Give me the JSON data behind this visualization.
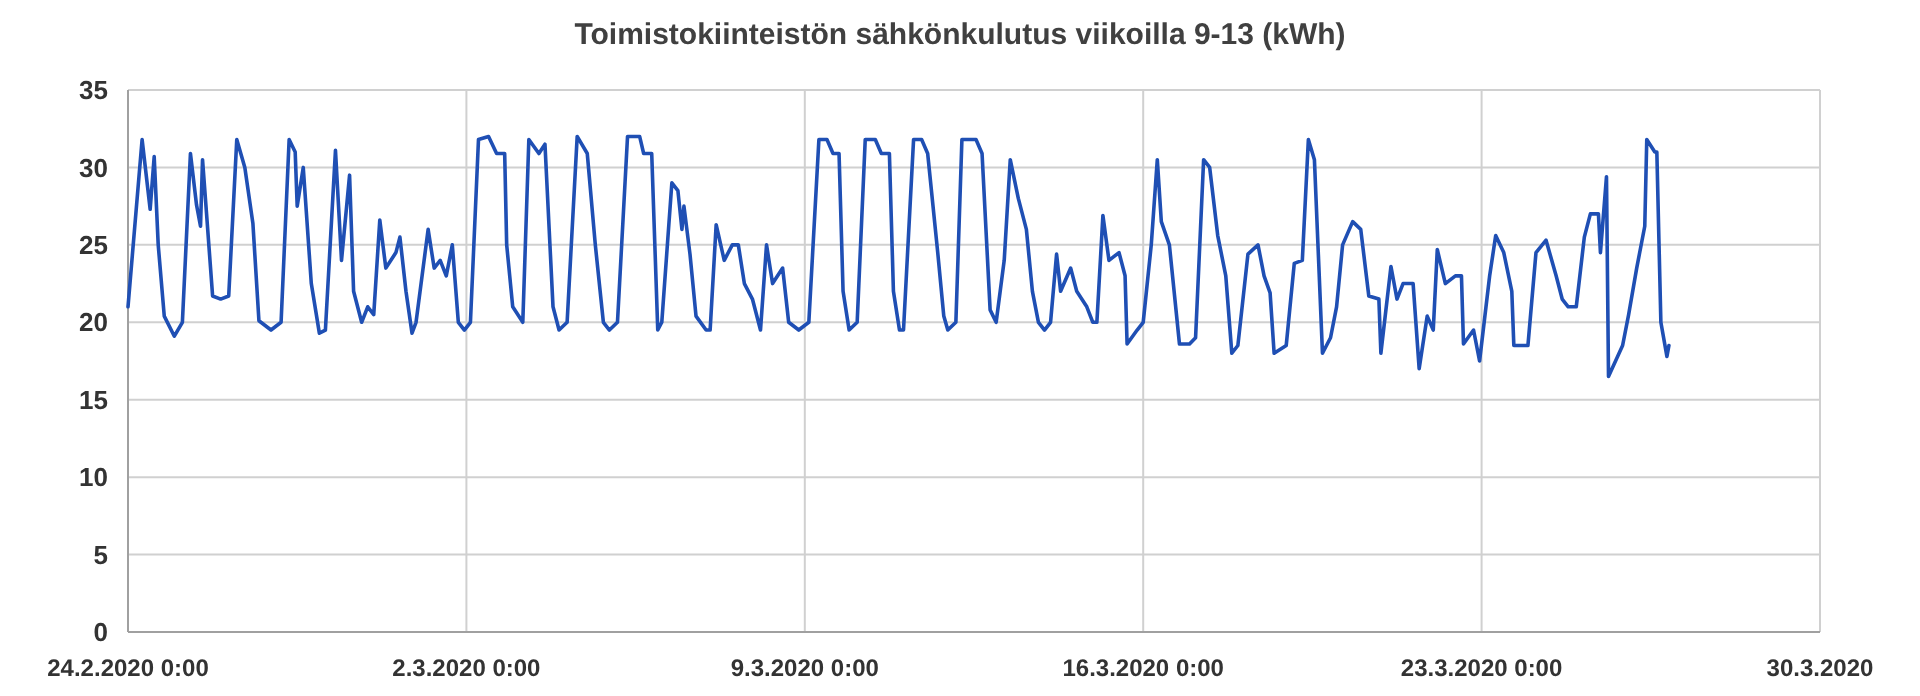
{
  "chart_data": {
    "type": "line",
    "title": "Toimistokiinteistön sähkönkulutus viikoilla 9-13 (kWh)",
    "xlim": [
      "2020-02-24",
      "2020-03-30"
    ],
    "xticks": [
      {
        "value": "2020-02-24",
        "label": "24.2.2020 0:00"
      },
      {
        "value": "2020-03-02",
        "label": "2.3.2020 0:00"
      },
      {
        "value": "2020-03-09",
        "label": "9.3.2020 0:00"
      },
      {
        "value": "2020-03-16",
        "label": "16.3.2020 0:00"
      },
      {
        "value": "2020-03-23",
        "label": "23.3.2020 0:00"
      },
      {
        "value": "2020-03-30",
        "label": "30.3.2020"
      }
    ],
    "ylim": [
      0,
      35
    ],
    "yticks": [
      0,
      5,
      10,
      15,
      20,
      25,
      30,
      35
    ],
    "grid": true,
    "series": [
      {
        "color": "#1f4fb4",
        "x": [
          "2020-02-24T00:00",
          "2020-02-24T07:00",
          "2020-02-24T11:00",
          "2020-02-24T13:00",
          "2020-02-24T15:00",
          "2020-02-24T18:00",
          "2020-02-24T23:00",
          "2020-02-25T03:00",
          "2020-02-25T07:00",
          "2020-02-25T10:00",
          "2020-02-25T12:00",
          "2020-02-25T13:00",
          "2020-02-25T15:00",
          "2020-02-25T18:00",
          "2020-02-25T22:00",
          "2020-02-26T02:00",
          "2020-02-26T06:00",
          "2020-02-26T10:00",
          "2020-02-26T14:00",
          "2020-02-26T17:00",
          "2020-02-26T23:00",
          "2020-02-27T04:00",
          "2020-02-27T08:00",
          "2020-02-27T11:00",
          "2020-02-27T12:00",
          "2020-02-27T15:00",
          "2020-02-27T19:00",
          "2020-02-27T23:00",
          "2020-02-28T02:00",
          "2020-02-28T07:00",
          "2020-02-28T10:00",
          "2020-02-28T14:00",
          "2020-02-28T16:00",
          "2020-02-28T20:00",
          "2020-02-28T23:00",
          "2020-02-29T02:00",
          "2020-02-29T05:00",
          "2020-02-29T08:00",
          "2020-02-29T13:00",
          "2020-02-29T15:00",
          "2020-02-29T18:00",
          "2020-02-29T21:00",
          "2020-02-29T23:00",
          "2020-03-01T05:00",
          "2020-03-01T08:00",
          "2020-03-01T11:00",
          "2020-03-01T14:00",
          "2020-03-01T17:00",
          "2020-03-01T20:00",
          "2020-03-01T23:00",
          "2020-03-02T02:00",
          "2020-03-02T06:00",
          "2020-03-02T11:00",
          "2020-03-02T15:00",
          "2020-03-02T19:00",
          "2020-03-02T20:00",
          "2020-03-02T23:00",
          "2020-03-03T04:00",
          "2020-03-03T07:00",
          "2020-03-03T12:00",
          "2020-03-03T15:00",
          "2020-03-03T19:00",
          "2020-03-03T22:00",
          "2020-03-04T02:00",
          "2020-03-04T07:00",
          "2020-03-04T12:00",
          "2020-03-04T16:00",
          "2020-03-04T20:00",
          "2020-03-04T23:00",
          "2020-03-05T03:00",
          "2020-03-05T08:00",
          "2020-03-05T14:00",
          "2020-03-05T16:00",
          "2020-03-05T20:00",
          "2020-03-05T23:00",
          "2020-03-06T01:00",
          "2020-03-06T06:00",
          "2020-03-06T09:00",
          "2020-03-06T11:00",
          "2020-03-06T12:00",
          "2020-03-06T15:00",
          "2020-03-06T18:00",
          "2020-03-06T23:00",
          "2020-03-07T01:00",
          "2020-03-07T04:00",
          "2020-03-07T08:00",
          "2020-03-07T12:00",
          "2020-03-07T15:00",
          "2020-03-07T18:00",
          "2020-03-07T22:00",
          "2020-03-08T02:00",
          "2020-03-08T05:00",
          "2020-03-08T08:00",
          "2020-03-08T13:00",
          "2020-03-08T16:00",
          "2020-03-08T21:00",
          "2020-03-09T02:00",
          "2020-03-09T07:00",
          "2020-03-09T11:00",
          "2020-03-09T14:00",
          "2020-03-09T17:00",
          "2020-03-09T19:00",
          "2020-03-09T22:00",
          "2020-03-10T02:00",
          "2020-03-10T06:00",
          "2020-03-10T11:00",
          "2020-03-10T14:00",
          "2020-03-10T18:00",
          "2020-03-10T20:00",
          "2020-03-10T23:00",
          "2020-03-11T01:00",
          "2020-03-11T06:00",
          "2020-03-11T10:00",
          "2020-03-11T13:00",
          "2020-03-11T18:00",
          "2020-03-11T21:00",
          "2020-03-11T23:00",
          "2020-03-12T03:00",
          "2020-03-12T06:00",
          "2020-03-12T13:00",
          "2020-03-12T16:00",
          "2020-03-12T20:00",
          "2020-03-12T23:00",
          "2020-03-13T03:00",
          "2020-03-13T06:00",
          "2020-03-13T10:00",
          "2020-03-13T14:00",
          "2020-03-13T17:00",
          "2020-03-13T20:00",
          "2020-03-13T23:00",
          "2020-03-14T02:00",
          "2020-03-14T05:00",
          "2020-03-14T07:00",
          "2020-03-14T12:00",
          "2020-03-14T15:00",
          "2020-03-14T20:00",
          "2020-03-14T23:00",
          "2020-03-15T01:00",
          "2020-03-15T04:00",
          "2020-03-15T07:00",
          "2020-03-15T12:00",
          "2020-03-15T15:00",
          "2020-03-15T16:00",
          "2020-03-15T21:00",
          "2020-03-16T00:00",
          "2020-03-16T04:00",
          "2020-03-16T07:00",
          "2020-03-16T09:00",
          "2020-03-16T13:00",
          "2020-03-16T18:00",
          "2020-03-16T23:00",
          "2020-03-17T02:00",
          "2020-03-17T06:00",
          "2020-03-17T09:00",
          "2020-03-17T13:00",
          "2020-03-17T17:00",
          "2020-03-17T20:00",
          "2020-03-17T23:00",
          "2020-03-18T04:00",
          "2020-03-18T09:00",
          "2020-03-18T12:00",
          "2020-03-18T15:00",
          "2020-03-18T17:00",
          "2020-03-18T23:00",
          "2020-03-19T03:00",
          "2020-03-19T07:00",
          "2020-03-19T10:00",
          "2020-03-19T13:00",
          "2020-03-19T17:00",
          "2020-03-19T21:00",
          "2020-03-20T00:00",
          "2020-03-20T03:00",
          "2020-03-20T08:00",
          "2020-03-20T12:00",
          "2020-03-20T16:00",
          "2020-03-20T21:00",
          "2020-03-20T22:00",
          "2020-03-21T03:00",
          "2020-03-21T06:00",
          "2020-03-21T09:00",
          "2020-03-21T14:00",
          "2020-03-21T17:00",
          "2020-03-21T21:00",
          "2020-03-22T00:00",
          "2020-03-22T02:00",
          "2020-03-22T06:00",
          "2020-03-22T11:00",
          "2020-03-22T14:00",
          "2020-03-22T15:00",
          "2020-03-22T20:00",
          "2020-03-22T23:00",
          "2020-03-23T04:00",
          "2020-03-23T07:00",
          "2020-03-23T11:00",
          "2020-03-23T15:00",
          "2020-03-23T16:00",
          "2020-03-23T23:00",
          "2020-03-24T03:00",
          "2020-03-24T08:00",
          "2020-03-24T13:00",
          "2020-03-24T16:00",
          "2020-03-24T19:00",
          "2020-03-24T23:00",
          "2020-03-25T03:00",
          "2020-03-25T06:00",
          "2020-03-25T10:00",
          "2020-03-25T11:00",
          "2020-03-25T14:00",
          "2020-03-25T15:00",
          "2020-03-25T22:00",
          "2020-03-26T01:00",
          "2020-03-26T05:00",
          "2020-03-26T09:00",
          "2020-03-26T10:00",
          "2020-03-26T14:00",
          "2020-03-26T15:00",
          "2020-03-26T17:00",
          "2020-03-26T20:00",
          "2020-03-26T21:00"
        ],
        "values": [
          21,
          31.8,
          27.3,
          30.7,
          25,
          20.4,
          19.1,
          20,
          30.9,
          27.6,
          26.2,
          30.5,
          27,
          21.7,
          21.5,
          21.7,
          31.8,
          30,
          26.4,
          20.1,
          19.5,
          20,
          31.8,
          31,
          27.5,
          30,
          22.5,
          19.3,
          19.5,
          31.1,
          24,
          29.5,
          22,
          20,
          21,
          20.5,
          26.6,
          23.5,
          24.5,
          25.5,
          22,
          19.3,
          20,
          26,
          23.5,
          24,
          23,
          25,
          20,
          19.5,
          20,
          31.8,
          32,
          30.9,
          30.9,
          25,
          21,
          20,
          31.8,
          30.9,
          31.5,
          21,
          19.5,
          20,
          32,
          30.9,
          25,
          20,
          19.5,
          20,
          32,
          32,
          30.9,
          30.9,
          19.5,
          20,
          29,
          28.5,
          26,
          27.5,
          24.4,
          20.4,
          19.5,
          19.5,
          26.3,
          24,
          25,
          25,
          22.5,
          21.5,
          19.5,
          25,
          22.5,
          23.5,
          20,
          19.5,
          20,
          31.8,
          31.8,
          30.9,
          30.9,
          22,
          19.5,
          20,
          31.8,
          31.8,
          30.9,
          30.9,
          22,
          19.5,
          19.5,
          31.8,
          31.8,
          30.9,
          24.5,
          20.4,
          19.5,
          20,
          31.8,
          31.8,
          30.9,
          20.8,
          20,
          24,
          30.5,
          28,
          26,
          22,
          20,
          19.5,
          20,
          24.4,
          22,
          23.5,
          22,
          21,
          20,
          20,
          26.9,
          24,
          24.5,
          23,
          18.6,
          19.5,
          20,
          25,
          30.5,
          26.5,
          25,
          18.6,
          18.6,
          19,
          30.5,
          30,
          25.6,
          23,
          18,
          18.5,
          24.4,
          25,
          23,
          21.9,
          18,
          18.5,
          23.8,
          24,
          31.8,
          30.5,
          18,
          19,
          21,
          25,
          26.5,
          26,
          21.7,
          21.5,
          18,
          23.6,
          21.5,
          22.5,
          22.5,
          17,
          20.4,
          19.5,
          24.7,
          22.5,
          23,
          23,
          18.6,
          19.5,
          17.5,
          23,
          25.6,
          24.5,
          22,
          18.5,
          18.5,
          24.5,
          25.3,
          23,
          21.5,
          21,
          21,
          25.5,
          27,
          27,
          24.5,
          29.4,
          16.5,
          18.5,
          20.5,
          23.5,
          26.2,
          31.8,
          31,
          31,
          20,
          17.8,
          18.5
        ]
      }
    ]
  }
}
